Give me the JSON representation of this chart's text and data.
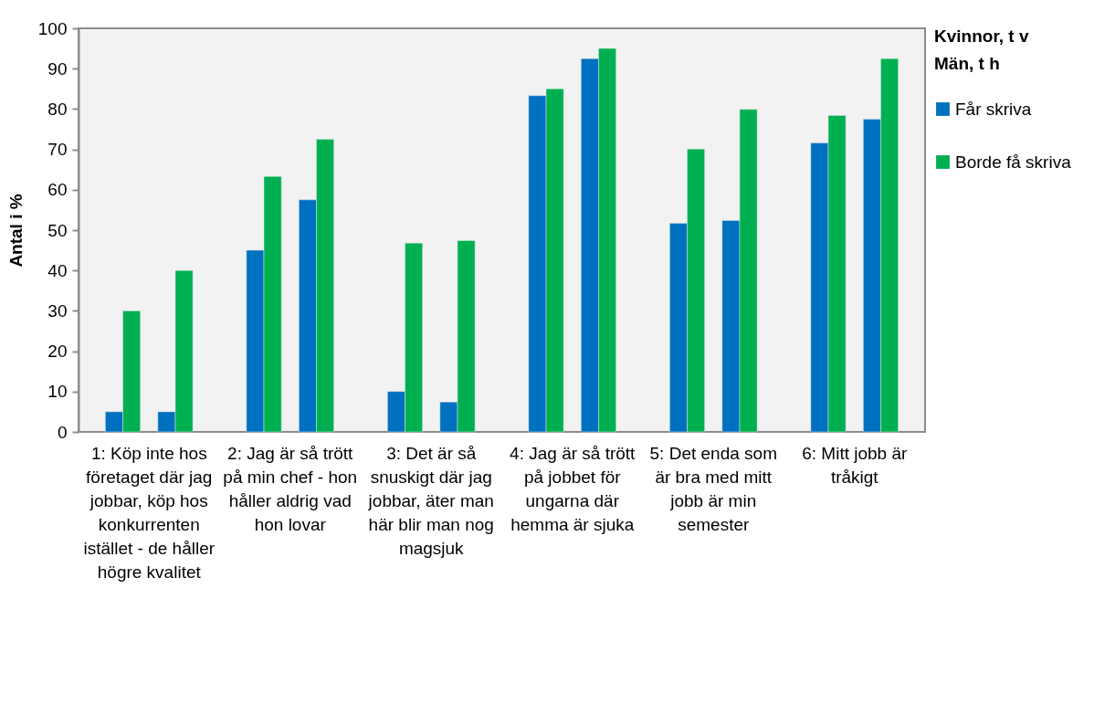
{
  "chart_data": {
    "type": "bar",
    "ylabel": "Antal i %",
    "legend_title": "Kvinnor, t v\nMän, t h",
    "legend": "right",
    "categories": [
      "1: Köp inte hos företaget där jag jobbar, köp hos konkurrenten istället - de håller högre kvalitet",
      "2: Jag är så trött på min chef - hon håller aldrig vad hon lovar",
      "3: Det är så snuskigt där jag jobbar, äter man här blir man nog magsjuk",
      "4: Jag är så trött på jobbet för ungarna där hemma är sjuka",
      "5: Det enda som är bra med mitt jobb är min semester",
      "6: Mitt jobb är tråkigt"
    ],
    "series": [
      {
        "name": "Får skriva",
        "color": "#0070c0",
        "values": [
          5,
          45,
          10,
          83.3,
          51.7,
          71.6
        ]
      },
      {
        "name": "Borde få skriva",
        "color": "#00b050",
        "values": [
          30,
          63.3,
          46.8,
          85,
          70.1,
          78.4
        ]
      },
      {
        "color": "#0070c0",
        "values": [
          5,
          57.5,
          7.4,
          92.5,
          52.4,
          77.5
        ]
      },
      {
        "color": "#00b050",
        "values": [
          40,
          72.5,
          47.4,
          95,
          79.9,
          92.5
        ]
      }
    ],
    "ylim": [
      0,
      100
    ],
    "yticks": [
      0,
      10,
      20,
      30,
      40,
      50,
      60,
      70,
      80,
      90,
      100
    ],
    "grid": false
  }
}
